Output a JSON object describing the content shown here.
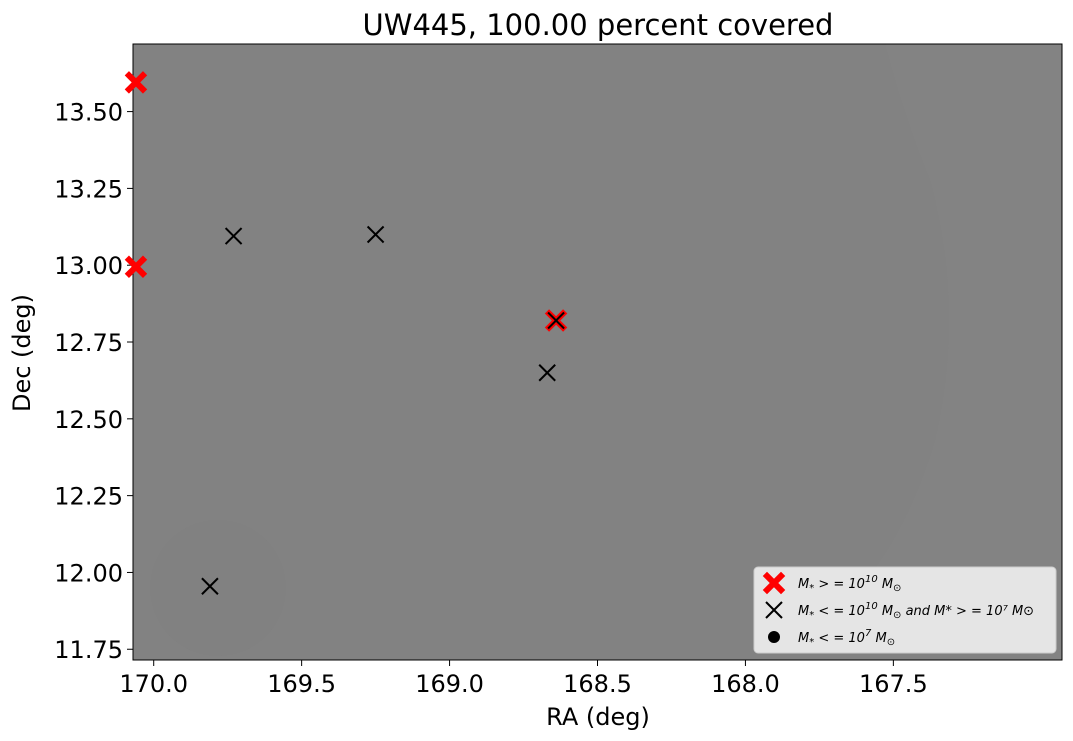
{
  "chart_data": {
    "type": "scatter",
    "title": "UW445, 100.00 percent covered",
    "xlabel": "RA (deg)",
    "ylabel": "Dec (deg)",
    "xlim": [
      170.07,
      166.93
    ],
    "ylim": [
      11.715,
      13.72
    ],
    "x_ticks": [
      170.0,
      169.5,
      169.0,
      168.5,
      168.0,
      167.5
    ],
    "x_tick_labels": [
      "170.0",
      "169.5",
      "169.0",
      "168.5",
      "168.0",
      "167.5"
    ],
    "y_ticks": [
      11.75,
      12.0,
      12.25,
      12.5,
      12.75,
      13.0,
      13.25,
      13.5
    ],
    "y_tick_labels": [
      "11.75",
      "12.00",
      "12.25",
      "12.50",
      "12.75",
      "13.00",
      "13.25",
      "13.50"
    ],
    "background_color": "#828282",
    "grid": false,
    "legend_position": "lower-right",
    "series": [
      {
        "name": "M_* >= 10^10 M_sun",
        "marker": "filled-x",
        "color": "#ff0000",
        "points": [
          {
            "x": 170.06,
            "y": 13.595
          },
          {
            "x": 170.06,
            "y": 12.995
          },
          {
            "x": 168.64,
            "y": 12.82
          }
        ]
      },
      {
        "name": "M_* <= 10^10 M_sun and M_* >= 10^7 M_sun",
        "marker": "x",
        "color": "#000000",
        "points": [
          {
            "x": 169.73,
            "y": 13.095
          },
          {
            "x": 169.25,
            "y": 13.1
          },
          {
            "x": 168.64,
            "y": 12.82
          },
          {
            "x": 168.67,
            "y": 12.65
          },
          {
            "x": 169.81,
            "y": 11.955
          }
        ]
      },
      {
        "name": "M_* <= 10^7 M_sun",
        "marker": "dot",
        "color": "#000000",
        "points": []
      }
    ],
    "legend": [
      {
        "marker": "filled-x",
        "color": "#ff0000",
        "pre": "M",
        "sub": "*",
        "mid": " > = 10",
        "sup": "10",
        "tail": "M",
        "tail_sub": "⊙",
        "extra": ""
      },
      {
        "marker": "x",
        "color": "#000000",
        "pre": "M",
        "sub": "*",
        "mid": " < = 10",
        "sup": "10",
        "tail": "M",
        "tail_sub": "⊙",
        "extra": " and M* > = 10⁷ M⊙"
      },
      {
        "marker": "dot",
        "color": "#000000",
        "pre": "M",
        "sub": "*",
        "mid": " < = 10",
        "sup": "7",
        "tail": "M",
        "tail_sub": "⊙",
        "extra": ""
      }
    ]
  }
}
